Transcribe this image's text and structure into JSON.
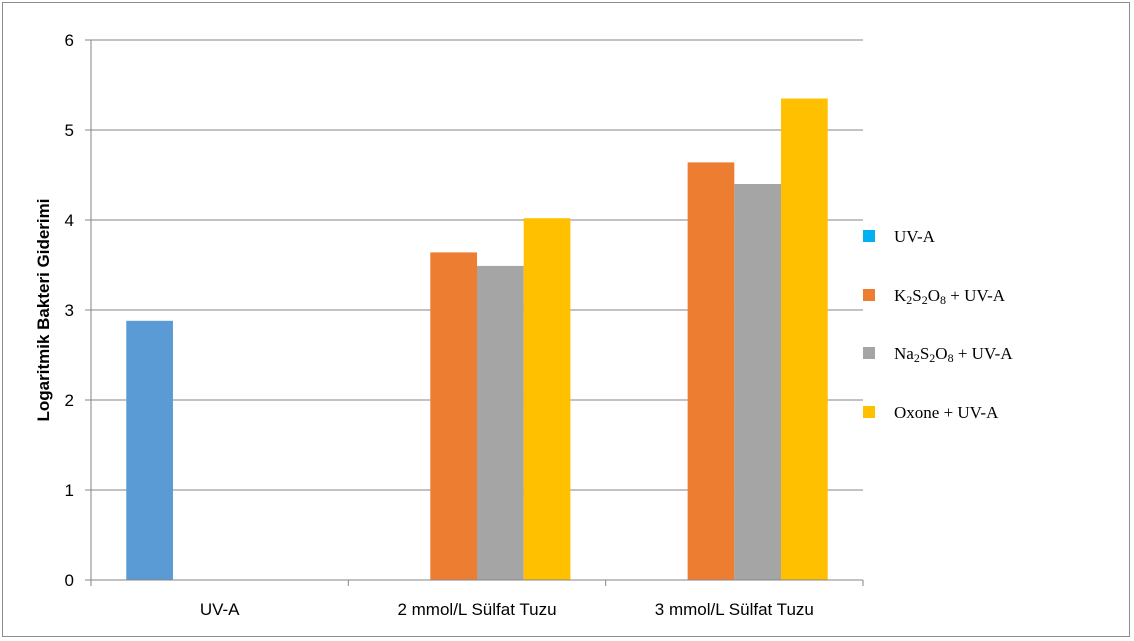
{
  "chart_data": {
    "type": "bar",
    "title": "",
    "xlabel": "",
    "ylabel": "Logaritmik Bakteri Giderimi",
    "ylim": [
      0,
      6
    ],
    "yticks": [
      0,
      1,
      2,
      3,
      4,
      5,
      6
    ],
    "grid": true,
    "legend_position": "right",
    "categories": [
      "UV-A",
      "2 mmol/L Sülfat Tuzu",
      "3 mmol/L Sülfat Tuzu"
    ],
    "series": [
      {
        "name": "UV-A",
        "legend_color": "#00B0F0",
        "bar_color": "#5B9BD5",
        "values": [
          2.88,
          null,
          null
        ]
      },
      {
        "name": "K2S2O8 + UV-A",
        "legend_color": "#ED7D31",
        "bar_color": "#ED7D31",
        "values": [
          null,
          3.64,
          4.64
        ]
      },
      {
        "name": "Na2S2O8 + UV-A",
        "legend_color": "#A5A5A5",
        "bar_color": "#A5A5A5",
        "values": [
          null,
          3.49,
          4.4
        ]
      },
      {
        "name": "Oxone + UV-A",
        "legend_color": "#FFC000",
        "bar_color": "#FFC000",
        "values": [
          null,
          4.02,
          5.35
        ]
      }
    ]
  }
}
